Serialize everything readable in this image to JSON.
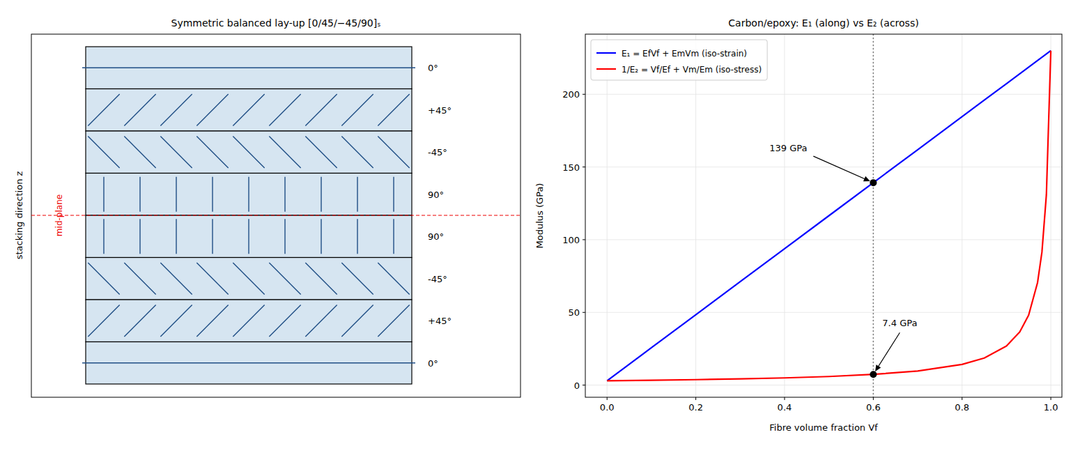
{
  "chart_data": {
    "type": "line",
    "title": "Carbon/epoxy: E₁ (along) vs E₂ (across)",
    "x_label": "Fibre volume fraction Vf",
    "y_label": "Modulus (GPa)",
    "x": [
      0,
      0.1,
      0.2,
      0.3,
      0.4,
      0.5,
      0.6,
      0.7,
      0.8,
      0.85,
      0.9,
      0.93,
      0.95,
      0.97,
      0.98,
      0.99,
      1.0
    ],
    "series": [
      {
        "name": "E₁ = EfVf + EmVm (iso-strain)",
        "color": "#0000ff",
        "values": [
          3,
          25.7,
          48.4,
          71.1,
          93.8,
          116.5,
          139.2,
          161.9,
          184.6,
          195.95,
          207.3,
          214.11,
          218.65,
          223.19,
          225.46,
          227.73,
          230
        ]
      },
      {
        "name": "1/E₂ = Vf/Ef + Vm/Em (iso-stress)",
        "color": "#ff0000",
        "values": [
          3,
          3.33,
          3.74,
          4.26,
          4.96,
          5.92,
          7.36,
          9.7,
          14.26,
          18.62,
          26.85,
          36.53,
          48.08,
          70.34,
          91.51,
          130.9,
          230
        ]
      }
    ],
    "xlim": [
      -0.049,
      1.025
    ],
    "ylim": [
      -8.35,
      241.35
    ],
    "xticks": [
      {
        "value": 0,
        "label": "0.0"
      },
      {
        "value": 0.2,
        "label": "0.2"
      },
      {
        "value": 0.4,
        "label": "0.4"
      },
      {
        "value": 0.6,
        "label": "0.6"
      },
      {
        "value": 0.8,
        "label": "0.8"
      },
      {
        "value": 1.0,
        "label": "1.0"
      }
    ],
    "yticks": [
      0,
      50,
      100,
      150,
      200
    ],
    "grid": true,
    "legend": "upper left",
    "reference_x": 0.6,
    "annotations": [
      {
        "text": "139 GPa",
        "x": 0.6,
        "y": 139.2
      },
      {
        "text": "7.4 GPa",
        "x": 0.6,
        "y": 7.36
      }
    ]
  },
  "diagram": {
    "title": "Symmetric balanced lay-up  [0/45/−45/90]ₛ",
    "axis_label": "stacking direction z",
    "midplane_label": "mid-plane",
    "plies": [
      {
        "label": "0°",
        "angle": 0
      },
      {
        "label": "+45°",
        "angle": 45
      },
      {
        "label": "-45°",
        "angle": -45
      },
      {
        "label": "90°",
        "angle": 90
      },
      {
        "label": "90°",
        "angle": 90
      },
      {
        "label": "-45°",
        "angle": -45
      },
      {
        "label": "+45°",
        "angle": 45
      },
      {
        "label": "0°",
        "angle": 0
      }
    ]
  }
}
